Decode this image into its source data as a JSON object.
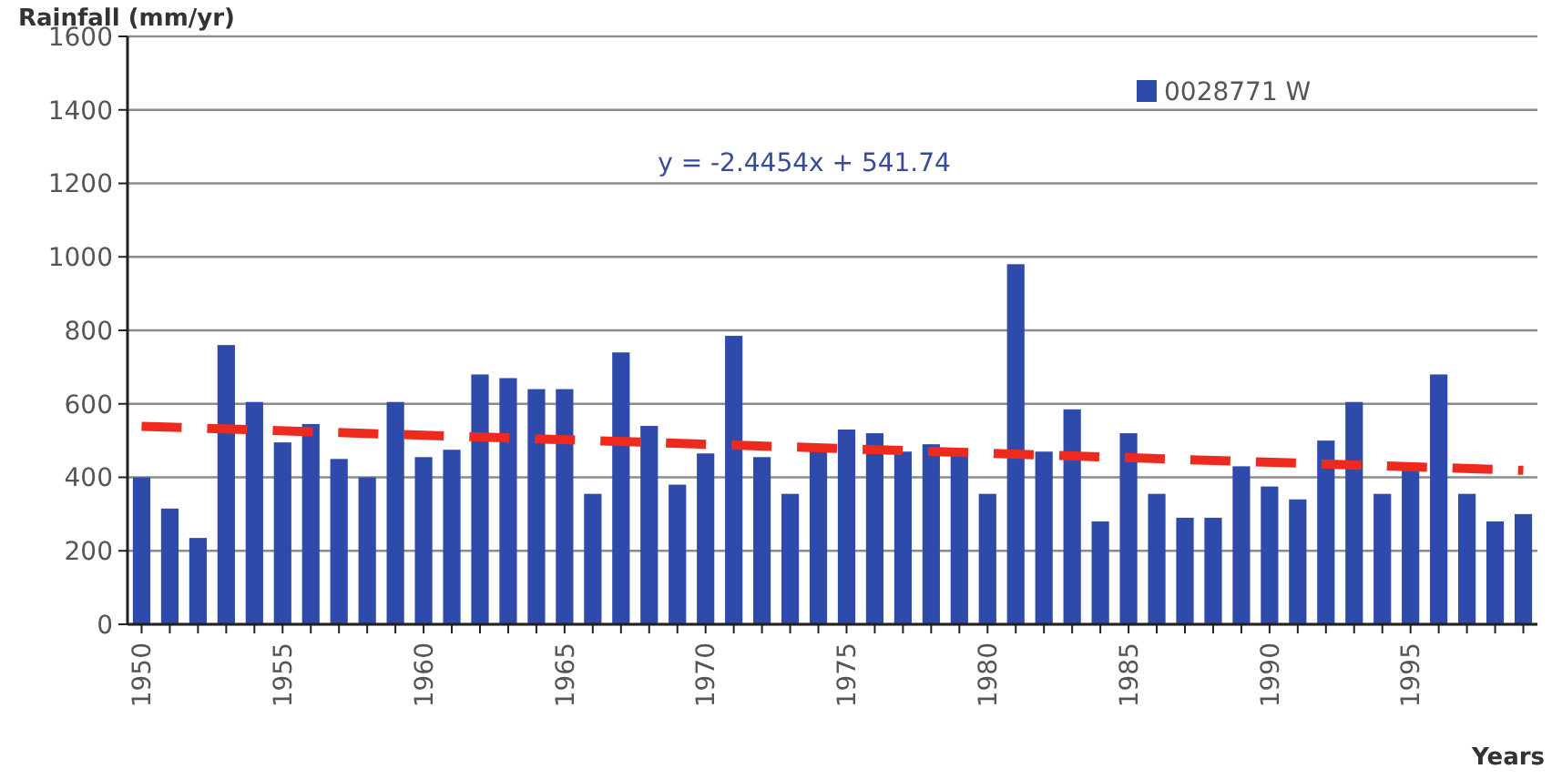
{
  "chart_data": {
    "type": "bar",
    "xlabel": "Years",
    "ylabel": "Rainfall (mm/yr)",
    "x": [
      1950,
      1951,
      1952,
      1953,
      1954,
      1955,
      1956,
      1957,
      1958,
      1959,
      1960,
      1961,
      1962,
      1963,
      1964,
      1965,
      1966,
      1967,
      1968,
      1969,
      1970,
      1971,
      1972,
      1973,
      1974,
      1975,
      1976,
      1977,
      1978,
      1979,
      1980,
      1981,
      1982,
      1983,
      1984,
      1985,
      1986,
      1987,
      1988,
      1989,
      1990,
      1991,
      1992,
      1993,
      1994,
      1995,
      1996,
      1997,
      1998,
      1999
    ],
    "series": [
      {
        "name": "0028771 W",
        "color": "#2e4bab",
        "values": [
          400,
          315,
          235,
          760,
          605,
          495,
          545,
          450,
          400,
          605,
          455,
          475,
          680,
          670,
          640,
          640,
          355,
          740,
          540,
          380,
          465,
          785,
          455,
          355,
          480,
          530,
          520,
          470,
          490,
          460,
          355,
          980,
          470,
          585,
          280,
          520,
          355,
          290,
          290,
          430,
          375,
          340,
          500,
          605,
          355,
          420,
          680,
          355,
          280,
          300
        ]
      },
      {
        "type": "line",
        "color": "#ee2a1e",
        "line_style": "dashed",
        "x": [
          1950,
          1999
        ],
        "values": [
          539,
          419
        ]
      }
    ],
    "annotations": [
      "y = -2.4454x + 541.74"
    ],
    "xlim": [
      1949.5,
      1999.5
    ],
    "xticks": [
      1950,
      {
        "value": 1951,
        "label": null
      },
      {
        "value": 1952,
        "label": null
      },
      {
        "value": 1953,
        "label": null
      },
      {
        "value": 1954,
        "label": null
      },
      1955,
      {
        "value": 1956,
        "label": null
      },
      {
        "value": 1957,
        "label": null
      },
      {
        "value": 1958,
        "label": null
      },
      {
        "value": 1959,
        "label": null
      },
      1960,
      {
        "value": 1961,
        "label": null
      },
      {
        "value": 1962,
        "label": null
      },
      {
        "value": 1963,
        "label": null
      },
      {
        "value": 1964,
        "label": null
      },
      1965,
      {
        "value": 1966,
        "label": null
      },
      {
        "value": 1967,
        "label": null
      },
      {
        "value": 1968,
        "label": null
      },
      {
        "value": 1969,
        "label": null
      },
      1970,
      {
        "value": 1971,
        "label": null
      },
      {
        "value": 1972,
        "label": null
      },
      {
        "value": 1973,
        "label": null
      },
      {
        "value": 1974,
        "label": null
      },
      1975,
      {
        "value": 1976,
        "label": null
      },
      {
        "value": 1977,
        "label": null
      },
      {
        "value": 1978,
        "label": null
      },
      {
        "value": 1979,
        "label": null
      },
      1980,
      {
        "value": 1981,
        "label": null
      },
      {
        "value": 1982,
        "label": null
      },
      {
        "value": 1983,
        "label": null
      },
      {
        "value": 1984,
        "label": null
      },
      1985,
      {
        "value": 1986,
        "label": null
      },
      {
        "value": 1987,
        "label": null
      },
      {
        "value": 1988,
        "label": null
      },
      {
        "value": 1989,
        "label": null
      },
      1990,
      {
        "value": 1991,
        "label": null
      },
      {
        "value": 1992,
        "label": null
      },
      {
        "value": 1993,
        "label": null
      },
      {
        "value": 1994,
        "label": null
      },
      1995,
      {
        "value": 1996,
        "label": null
      },
      {
        "value": 1997,
        "label": null
      },
      {
        "value": 1998,
        "label": null
      },
      {
        "value": 1999,
        "label": null
      }
    ],
    "ylim": [
      0,
      1600
    ],
    "yticks": [
      0,
      200,
      400,
      600,
      800,
      1000,
      1200,
      1400,
      1600
    ],
    "grid": "y",
    "legend": "top right"
  }
}
